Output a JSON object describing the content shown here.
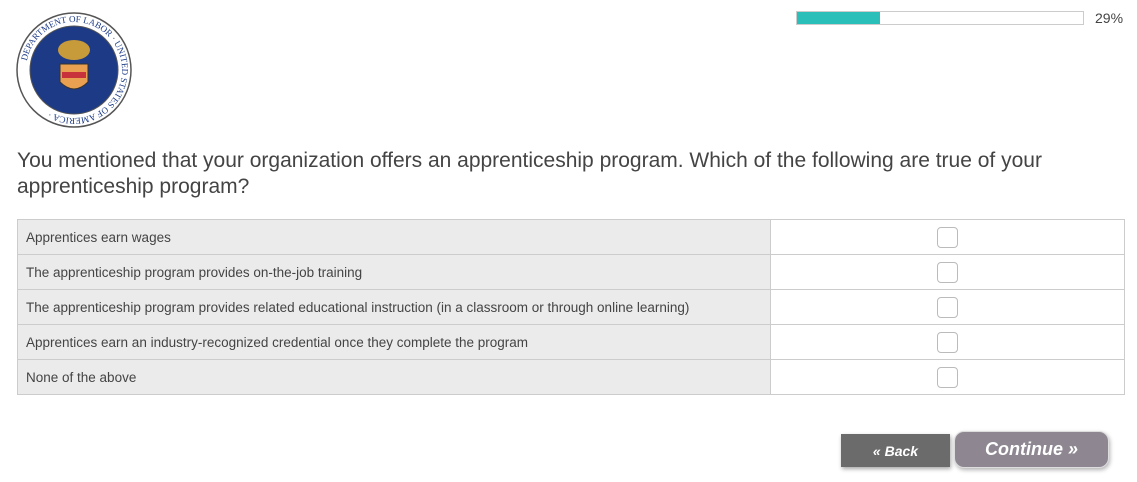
{
  "progress": {
    "percent": 29,
    "label": "29%",
    "color": "#2bbfba"
  },
  "logo": {
    "top_text": "DEPARTMENT OF LABOR",
    "bottom_text": "UNITED STATES OF AMERICA"
  },
  "question": "You mentioned that your organization offers an apprenticeship program. Which of the following are true of your apprenticeship program?",
  "options": [
    {
      "label": "Apprentices earn wages",
      "checked": false
    },
    {
      "label": "The apprenticeship program provides on-the-job training",
      "checked": false
    },
    {
      "label": "The apprenticeship program provides related educational instruction (in a classroom or through online learning)",
      "checked": false
    },
    {
      "label": "Apprentices earn an industry-recognized credential once they complete the program",
      "checked": false
    },
    {
      "label": "None of the above",
      "checked": false
    }
  ],
  "buttons": {
    "back": "« Back",
    "continue": "Continue »"
  }
}
